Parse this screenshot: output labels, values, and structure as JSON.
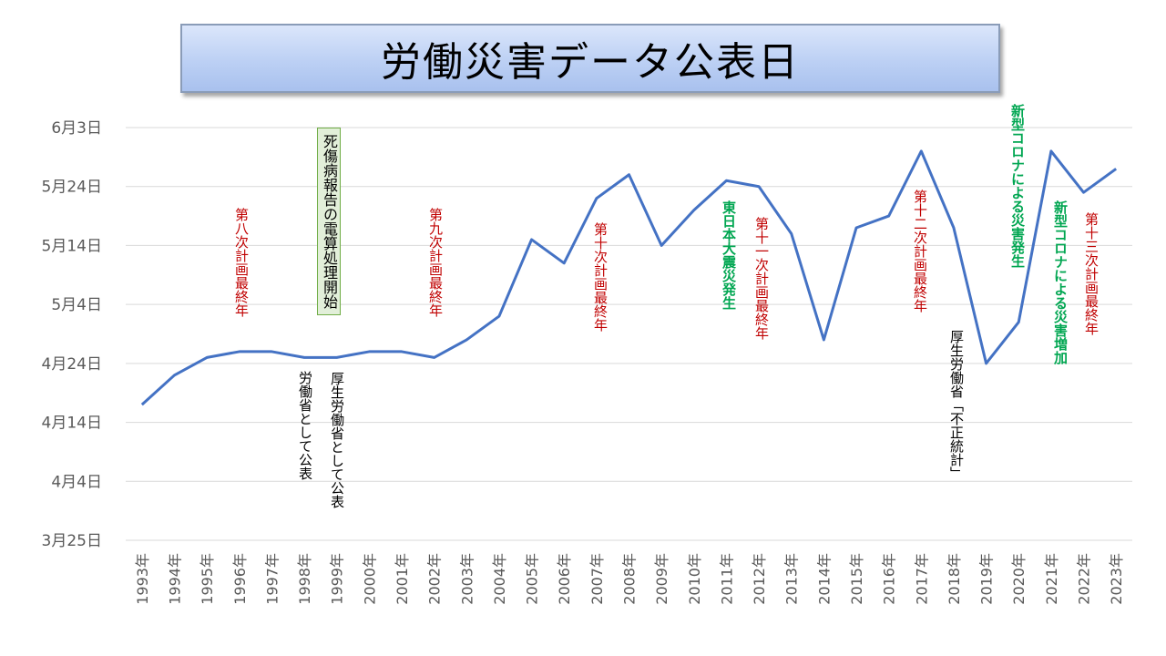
{
  "chart_data": {
    "type": "line",
    "title": "労働災害データ公表日",
    "x": [
      "1993年",
      "1994年",
      "1995年",
      "1996年",
      "1997年",
      "1998年",
      "1999年",
      "2000年",
      "2001年",
      "2002年",
      "2003年",
      "2004年",
      "2005年",
      "2006年",
      "2007年",
      "2008年",
      "2009年",
      "2010年",
      "2011年",
      "2012年",
      "2013年",
      "2014年",
      "2015年",
      "2016年",
      "2017年",
      "2018年",
      "2019年",
      "2020年",
      "2021年",
      "2022年",
      "2023年"
    ],
    "series": [
      {
        "values": [
          "2001-04-17",
          "2001-04-22",
          "2001-04-25",
          "2001-04-26",
          "2001-04-26",
          "2001-04-25",
          "2001-04-25",
          "2001-04-26",
          "2001-04-26",
          "2001-04-25",
          "2001-04-28",
          "2001-05-02",
          "2001-05-15",
          "2001-05-11",
          "2001-05-22",
          "2001-05-26",
          "2001-05-14",
          "2001-05-20",
          "2001-05-25",
          "2001-05-24",
          "2001-05-16",
          "2001-04-28",
          "2001-05-17",
          "2001-05-19",
          "2001-05-30",
          "2001-05-17",
          "2001-04-24",
          "2001-05-01",
          "2001-05-30",
          "2001-05-23",
          "2001-05-27"
        ]
      }
    ],
    "y_ticks": [
      "3月25日",
      "4月4日",
      "4月14日",
      "4月24日",
      "5月4日",
      "5月14日",
      "5月24日",
      "6月3日"
    ],
    "ylim": [
      "2001-03-25",
      "2001-06-03"
    ],
    "grid": true,
    "line_color": "#4472c4"
  },
  "annotations": {
    "hachi": "第八次計画最終年",
    "kyu": "第九次計画最終年",
    "juu": "第十次計画最終年",
    "juuichi": "第十一次計画最終年",
    "juuni": "第十二次計画最終年",
    "juusan": "第十三次計画最終年",
    "shinsai": "東日本大震災発生",
    "corona1": "新型コロナによる災害発生",
    "corona2": "新型コロナによる災害増加",
    "rodosho": "労働省として公表",
    "kosei1999": "厚生労働省として公表",
    "kosei2018": "厚生労働省「不正統計」",
    "densan": "死傷病報告の電算処理開始"
  }
}
